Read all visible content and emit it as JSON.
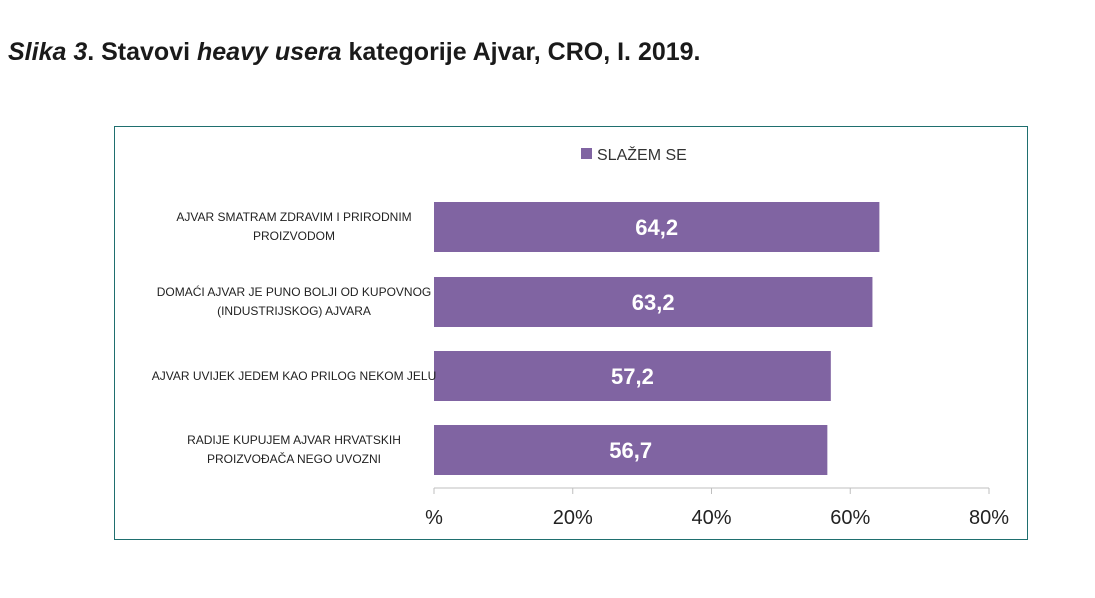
{
  "title": {
    "prefix": "Slika 3",
    "part1": ". Stavovi ",
    "italic": "heavy usera",
    "part2": " kategorije Ajvar, CRO, I. 2019."
  },
  "chart_data": {
    "type": "bar",
    "orientation": "horizontal",
    "categories": [
      [
        "AJVAR SMATRAM ZDRAVIM I PRIRODNIM",
        "PROIZVODOM"
      ],
      [
        "DOMAĆI AJVAR JE PUNO BOLJI OD KUPOVNOG",
        "(INDUSTRIJSKOG) AJVARA"
      ],
      [
        "AJVAR UVIJEK JEDEM KAO PRILOG NEKOM JELU"
      ],
      [
        "RADIJE KUPUJEM AJVAR HRVATSKIH",
        "PROIZVOĐAČA NEGO UVOZNI"
      ]
    ],
    "series": [
      {
        "name": "SLAŽEM SE",
        "values": [
          64.2,
          63.2,
          57.2,
          56.7
        ],
        "labels": [
          "64,2",
          "63,2",
          "57,2",
          "56,7"
        ],
        "color": "#8064a2"
      }
    ],
    "xlim": [
      0,
      80
    ],
    "xticks": [
      0,
      20,
      40,
      60,
      80
    ],
    "xtick_labels": [
      "%",
      "20%",
      "40%",
      "60%",
      "80%"
    ],
    "grid": false,
    "legend_position": "top-center",
    "axis_color": "#bfbfbf"
  }
}
